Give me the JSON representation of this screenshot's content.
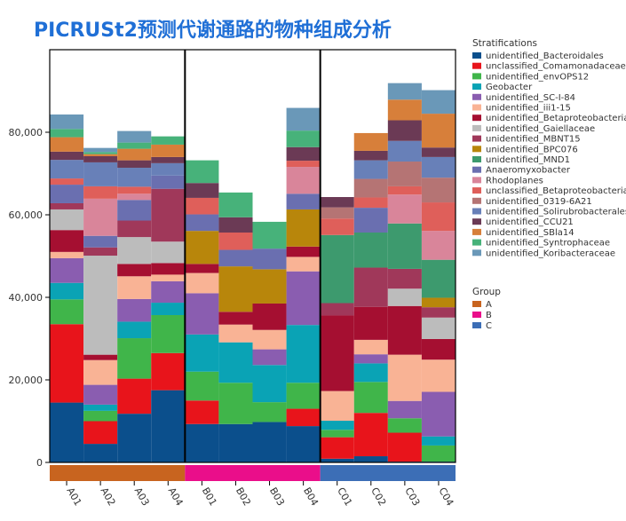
{
  "chart_data": {
    "type": "bar",
    "stacked": true,
    "title": "PICRUSt2预测代谢通路的物种组成分析",
    "xlabel": "",
    "ylabel": "",
    "ylim": [
      0,
      100000
    ],
    "yticks": [
      "0",
      "20,000",
      "40,000",
      "60,000",
      "80,000"
    ],
    "ytick_values": [
      0,
      20000,
      40000,
      60000,
      80000
    ],
    "categories": [
      "A01",
      "A02",
      "A03",
      "A04",
      "B01",
      "B02",
      "B03",
      "B04",
      "C01",
      "C02",
      "C03",
      "C04"
    ],
    "legend_title": "Stratifications",
    "series": [
      {
        "name": "unidentified_Bacteroidales",
        "color": "#0b4f8c",
        "values": [
          14500,
          4500,
          11800,
          17500,
          9300,
          9300,
          9800,
          8800,
          900,
          1500,
          200,
          200
        ]
      },
      {
        "name": "unclassified_Comamonadaceae",
        "color": "#e8141b",
        "values": [
          19000,
          5500,
          8500,
          9000,
          5700,
          0,
          0,
          4200,
          5200,
          10500,
          7000,
          0
        ]
      },
      {
        "name": "unidentified_envOPS12",
        "color": "#40b54a",
        "values": [
          6000,
          2500,
          9800,
          9200,
          7000,
          10000,
          4800,
          6300,
          1800,
          7500,
          3500,
          3900
        ]
      },
      {
        "name": "Geobacter",
        "color": "#0aa3b5",
        "values": [
          4000,
          1500,
          4000,
          3000,
          9000,
          9800,
          9000,
          14000,
          2200,
          4500,
          0,
          2200
        ]
      },
      {
        "name": "unidentified_SC-I-84",
        "color": "#8a5db0",
        "values": [
          6000,
          4800,
          5500,
          5200,
          10000,
          0,
          3800,
          13000,
          0,
          2200,
          4200,
          10800
        ]
      },
      {
        "name": "unidentified_iii1-15",
        "color": "#f9b395",
        "values": [
          1500,
          6000,
          5500,
          1600,
          4900,
          4300,
          4700,
          3500,
          7200,
          3500,
          11200,
          7800
        ]
      },
      {
        "name": "unidentified_Betaproteobacteria",
        "color": "#a50f31",
        "values": [
          5300,
          1300,
          3000,
          2800,
          2200,
          3100,
          6400,
          2500,
          18300,
          8000,
          11800,
          5000
        ]
      },
      {
        "name": "unidentified_Gaiellaceae",
        "color": "#bcbcbc",
        "values": [
          5000,
          24000,
          6500,
          5200,
          0,
          0,
          0,
          0,
          0,
          0,
          4200,
          5200
        ]
      },
      {
        "name": "unidentified_MBNT15",
        "color": "#a0385a",
        "values": [
          1500,
          2000,
          4000,
          12800,
          0,
          0,
          0,
          0,
          3000,
          9500,
          4800,
          2500
        ]
      },
      {
        "name": "unidentified_BPC076",
        "color": "#b8860b",
        "values": [
          0,
          0,
          0,
          0,
          8000,
          11000,
          8300,
          9000,
          0,
          0,
          0,
          2300
        ]
      },
      {
        "name": "unidentified_MND1",
        "color": "#3d9a6e",
        "values": [
          0,
          0,
          0,
          0,
          0,
          0,
          0,
          0,
          16500,
          8500,
          11000,
          9200
        ]
      },
      {
        "name": "Anaeromyxobacter",
        "color": "#6a6fb0",
        "values": [
          4500,
          2800,
          5000,
          3200,
          4000,
          4000,
          5000,
          3800,
          0,
          6000,
          0,
          0
        ]
      },
      {
        "name": "Rhodoplanes",
        "color": "#d9859a",
        "values": [
          0,
          9000,
          1500,
          0,
          0,
          0,
          0,
          6500,
          0,
          0,
          7000,
          7000
        ]
      },
      {
        "name": "unclassified_Betaproteobacteria",
        "color": "#df5f5a",
        "values": [
          1500,
          3000,
          1700,
          0,
          4000,
          4200,
          0,
          1500,
          4000,
          2500,
          2000,
          6900
        ]
      },
      {
        "name": "unidentified_0319-6A21",
        "color": "#b57474",
        "values": [
          0,
          0,
          0,
          0,
          0,
          0,
          0,
          0,
          2700,
          4500,
          6000,
          6000
        ]
      },
      {
        "name": "unidentified_Solirubrobacterales",
        "color": "#6880b8",
        "values": [
          4500,
          5800,
          4600,
          3000,
          0,
          0,
          0,
          0,
          0,
          4500,
          5000,
          5000
        ]
      },
      {
        "name": "unidentified_CCU21",
        "color": "#6b3a55",
        "values": [
          2000,
          1500,
          1800,
          1500,
          3600,
          3700,
          0,
          3300,
          2500,
          2300,
          5000,
          2300
        ]
      },
      {
        "name": "unidentified_SBla14",
        "color": "#d77f3a",
        "values": [
          3500,
          500,
          2800,
          3000,
          0,
          0,
          0,
          0,
          0,
          4300,
          5000,
          8200
        ]
      },
      {
        "name": "unidentified_Syntrophaceae",
        "color": "#47b27a",
        "values": [
          2000,
          500,
          1500,
          2000,
          5500,
          6000,
          6500,
          4000,
          0,
          0,
          0,
          0
        ]
      },
      {
        "name": "unidentified_Koribacteraceae",
        "color": "#6a98b8",
        "values": [
          3500,
          1000,
          2800,
          0,
          0,
          0,
          0,
          5500,
          0,
          0,
          4000,
          5700
        ]
      }
    ],
    "groups": {
      "title": "Group",
      "items": [
        {
          "name": "A",
          "color": "#c8641f",
          "samples": [
            0,
            1,
            2,
            3
          ]
        },
        {
          "name": "B",
          "color": "#ea0e8a",
          "samples": [
            4,
            5,
            6,
            7
          ]
        },
        {
          "name": "C",
          "color": "#3c6eb6",
          "samples": [
            8,
            9,
            10,
            11
          ]
        }
      ]
    }
  }
}
